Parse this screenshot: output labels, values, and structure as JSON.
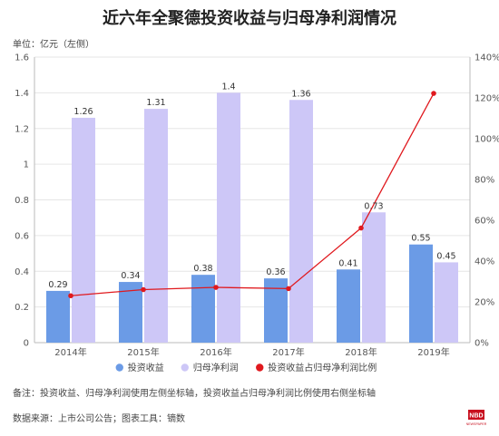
{
  "title": "近六年全聚德投资收益与归母净利润情况",
  "unit_label": "单位：亿元（左侧）",
  "note": "备注：投资收益、归母净利润使用左侧坐标轴，投资收益占归母净利润比例使用右侧坐标轴",
  "source": "数据来源：上市公司公告；图表工具：镝数",
  "logo": {
    "text_top": "NBD",
    "text_bottom": "NEWSPAPER",
    "color": "#c8101f"
  },
  "chart_data": {
    "type": "bar",
    "categories": [
      "2014年",
      "2015年",
      "2016年",
      "2017年",
      "2018年",
      "2019年"
    ],
    "series": [
      {
        "name": "投资收益",
        "type": "bar",
        "axis": "left",
        "color": "#6b9be6",
        "values": [
          0.29,
          0.34,
          0.38,
          0.36,
          0.41,
          0.55
        ],
        "labels": [
          "0.29",
          "0.34",
          "0.38",
          "0.36",
          "0.41",
          "0.55"
        ]
      },
      {
        "name": "归母净利润",
        "type": "bar",
        "axis": "left",
        "color": "#cdc7f7",
        "values": [
          1.26,
          1.31,
          1.4,
          1.36,
          0.73,
          0.45
        ],
        "labels": [
          "1.26",
          "1.31",
          "1.4",
          "1.36",
          "0.73",
          "0.45"
        ]
      },
      {
        "name": "投资收益占归母净利润比例",
        "type": "line",
        "axis": "right",
        "color": "#e0191e",
        "values": [
          23.0,
          26.0,
          27.1,
          26.5,
          56.2,
          122.2
        ]
      }
    ],
    "y_left": {
      "min": 0,
      "max": 1.6,
      "ticks": [
        "0",
        "0.2",
        "0.4",
        "0.6",
        "0.8",
        "1",
        "1.2",
        "1.4",
        "1.6"
      ]
    },
    "y_right": {
      "min": 0,
      "max": 140,
      "ticks": [
        "0%",
        "20%",
        "40%",
        "60%",
        "80%",
        "100%",
        "120%",
        "140%"
      ]
    },
    "grid": true,
    "legend_position": "bottom"
  }
}
